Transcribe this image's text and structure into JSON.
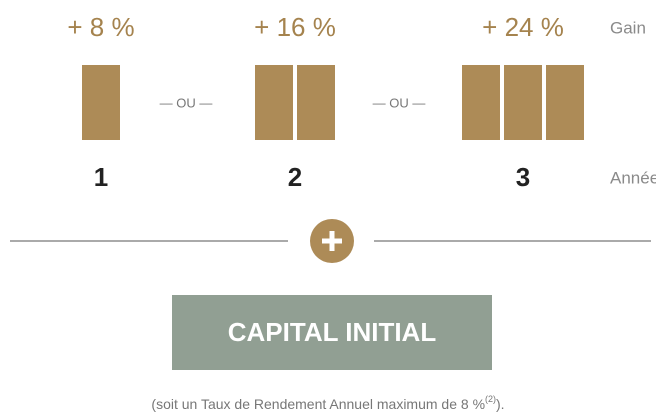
{
  "gain_label": "Gain",
  "year_label": "Année",
  "columns": [
    {
      "gain": "+ 8 %",
      "year": "1",
      "blocks": 1
    },
    {
      "gain": "+ 16 %",
      "year": "2",
      "blocks": 2
    },
    {
      "gain": "+ 24 %",
      "year": "3",
      "blocks": 3
    }
  ],
  "separators": [
    "— OU —",
    "— OU —"
  ],
  "capital": "CAPITAL INITIAL",
  "footnote": {
    "text": "(soit un Taux de Rendement Annuel maximum de 8 %",
    "ref": "(2)",
    "tail": ")."
  }
}
